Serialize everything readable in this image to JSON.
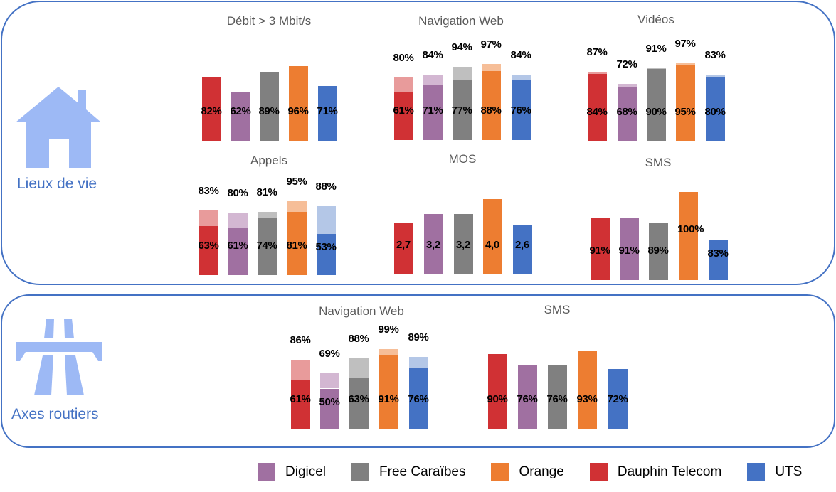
{
  "sections": {
    "lieux": "Lieux de vie",
    "routes": "Axes routiers"
  },
  "operators": [
    {
      "name": "Dauphin Telecom",
      "color": "#D03134",
      "light": "#E89B9B"
    },
    {
      "name": "Digicel",
      "color": "#A070A1",
      "light": "#D3B7D2"
    },
    {
      "name": "Free Caraïbes",
      "color": "#808080",
      "light": "#BFBFBF"
    },
    {
      "name": "Orange",
      "color": "#ED7D31",
      "light": "#F6BE98"
    },
    {
      "name": "UTS",
      "color": "#4472C4",
      "light": "#B4C7E7"
    }
  ],
  "legend": [
    "Digicel",
    "Free Caraïbes",
    "Orange",
    "Dauphin Telecom",
    "UTS"
  ],
  "legend_idx": [
    1,
    2,
    3,
    0,
    4
  ],
  "chart_data": [
    {
      "type": "bar",
      "section": "Lieux de vie",
      "title": "Débit > 3 Mbit/s",
      "categories": [
        "Dauphin Telecom",
        "Digicel",
        "Free Caraïbes",
        "Orange",
        "UTS"
      ],
      "values": [
        82,
        62,
        89,
        96,
        71
      ],
      "labels": [
        "82%",
        "62%",
        "89%",
        "96%",
        "71%"
      ],
      "ylim": [
        0,
        100
      ]
    },
    {
      "type": "bar",
      "section": "Lieux de vie",
      "title": "Navigation Web",
      "categories": [
        "Dauphin Telecom",
        "Digicel",
        "Free Caraïbes",
        "Orange",
        "UTS"
      ],
      "values": [
        61,
        71,
        77,
        88,
        76
      ],
      "labels": [
        "61%",
        "71%",
        "77%",
        "88%",
        "76%"
      ],
      "outer_values": [
        80,
        84,
        94,
        97,
        84
      ],
      "outer_labels": [
        "80%",
        "84%",
        "94%",
        "97%",
        "84%"
      ],
      "ylim": [
        0,
        100
      ]
    },
    {
      "type": "bar",
      "section": "Lieux de vie",
      "title": "Vidéos",
      "categories": [
        "Dauphin Telecom",
        "Digicel",
        "Free Caraïbes",
        "Orange",
        "UTS"
      ],
      "values": [
        84,
        68,
        90,
        95,
        80
      ],
      "labels": [
        "84%",
        "68%",
        "90%",
        "95%",
        "80%"
      ],
      "outer_values": [
        87,
        72,
        91,
        97,
        83
      ],
      "outer_labels": [
        "87%",
        "72%",
        "91%",
        "97%",
        "83%"
      ],
      "ylim": [
        0,
        100
      ]
    },
    {
      "type": "bar",
      "section": "Lieux de vie",
      "title": "Appels",
      "categories": [
        "Dauphin Telecom",
        "Digicel",
        "Free Caraïbes",
        "Orange",
        "UTS"
      ],
      "values": [
        63,
        61,
        74,
        81,
        53
      ],
      "labels": [
        "63%",
        "61%",
        "74%",
        "81%",
        "53%"
      ],
      "outer_values": [
        83,
        80,
        81,
        95,
        88
      ],
      "outer_labels": [
        "83%",
        "80%",
        "81%",
        "95%",
        "88%"
      ],
      "ylim": [
        0,
        100
      ]
    },
    {
      "type": "bar",
      "section": "Lieux de vie",
      "title": "MOS",
      "categories": [
        "Dauphin Telecom",
        "Digicel",
        "Free Caraïbes",
        "Orange",
        "UTS"
      ],
      "values": [
        2.7,
        3.2,
        3.2,
        4.0,
        2.6
      ],
      "labels": [
        "2,7",
        "3,2",
        "3,2",
        "4,0",
        "2,6"
      ],
      "ylim": [
        0,
        4.5
      ]
    },
    {
      "type": "bar",
      "section": "Lieux de vie",
      "title": "SMS",
      "categories": [
        "Dauphin Telecom",
        "Digicel",
        "Free Caraïbes",
        "Orange",
        "UTS"
      ],
      "values": [
        91,
        91,
        89,
        100,
        83
      ],
      "labels": [
        "91%",
        "91%",
        "89%",
        "100%",
        "83%"
      ],
      "ylim": [
        69,
        102
      ]
    },
    {
      "type": "bar",
      "section": "Axes routiers",
      "title": "Navigation Web",
      "categories": [
        "Dauphin Telecom",
        "Digicel",
        "Free Caraïbes",
        "Orange",
        "UTS"
      ],
      "values": [
        61,
        50,
        63,
        91,
        76
      ],
      "labels": [
        "61%",
        "50%",
        "63%",
        "91%",
        "76%"
      ],
      "outer_values": [
        86,
        69,
        88,
        99,
        89
      ],
      "outer_labels": [
        "86%",
        "69%",
        "88%",
        "99%",
        "89%"
      ],
      "ylim": [
        0,
        100
      ]
    },
    {
      "type": "bar",
      "section": "Axes routiers",
      "title": "SMS",
      "categories": [
        "Dauphin Telecom",
        "Digicel",
        "Free Caraïbes",
        "Orange",
        "UTS"
      ],
      "values": [
        90,
        76,
        76,
        93,
        72
      ],
      "labels": [
        "90%",
        "76%",
        "76%",
        "93%",
        "72%"
      ],
      "ylim": [
        0,
        100
      ]
    }
  ]
}
